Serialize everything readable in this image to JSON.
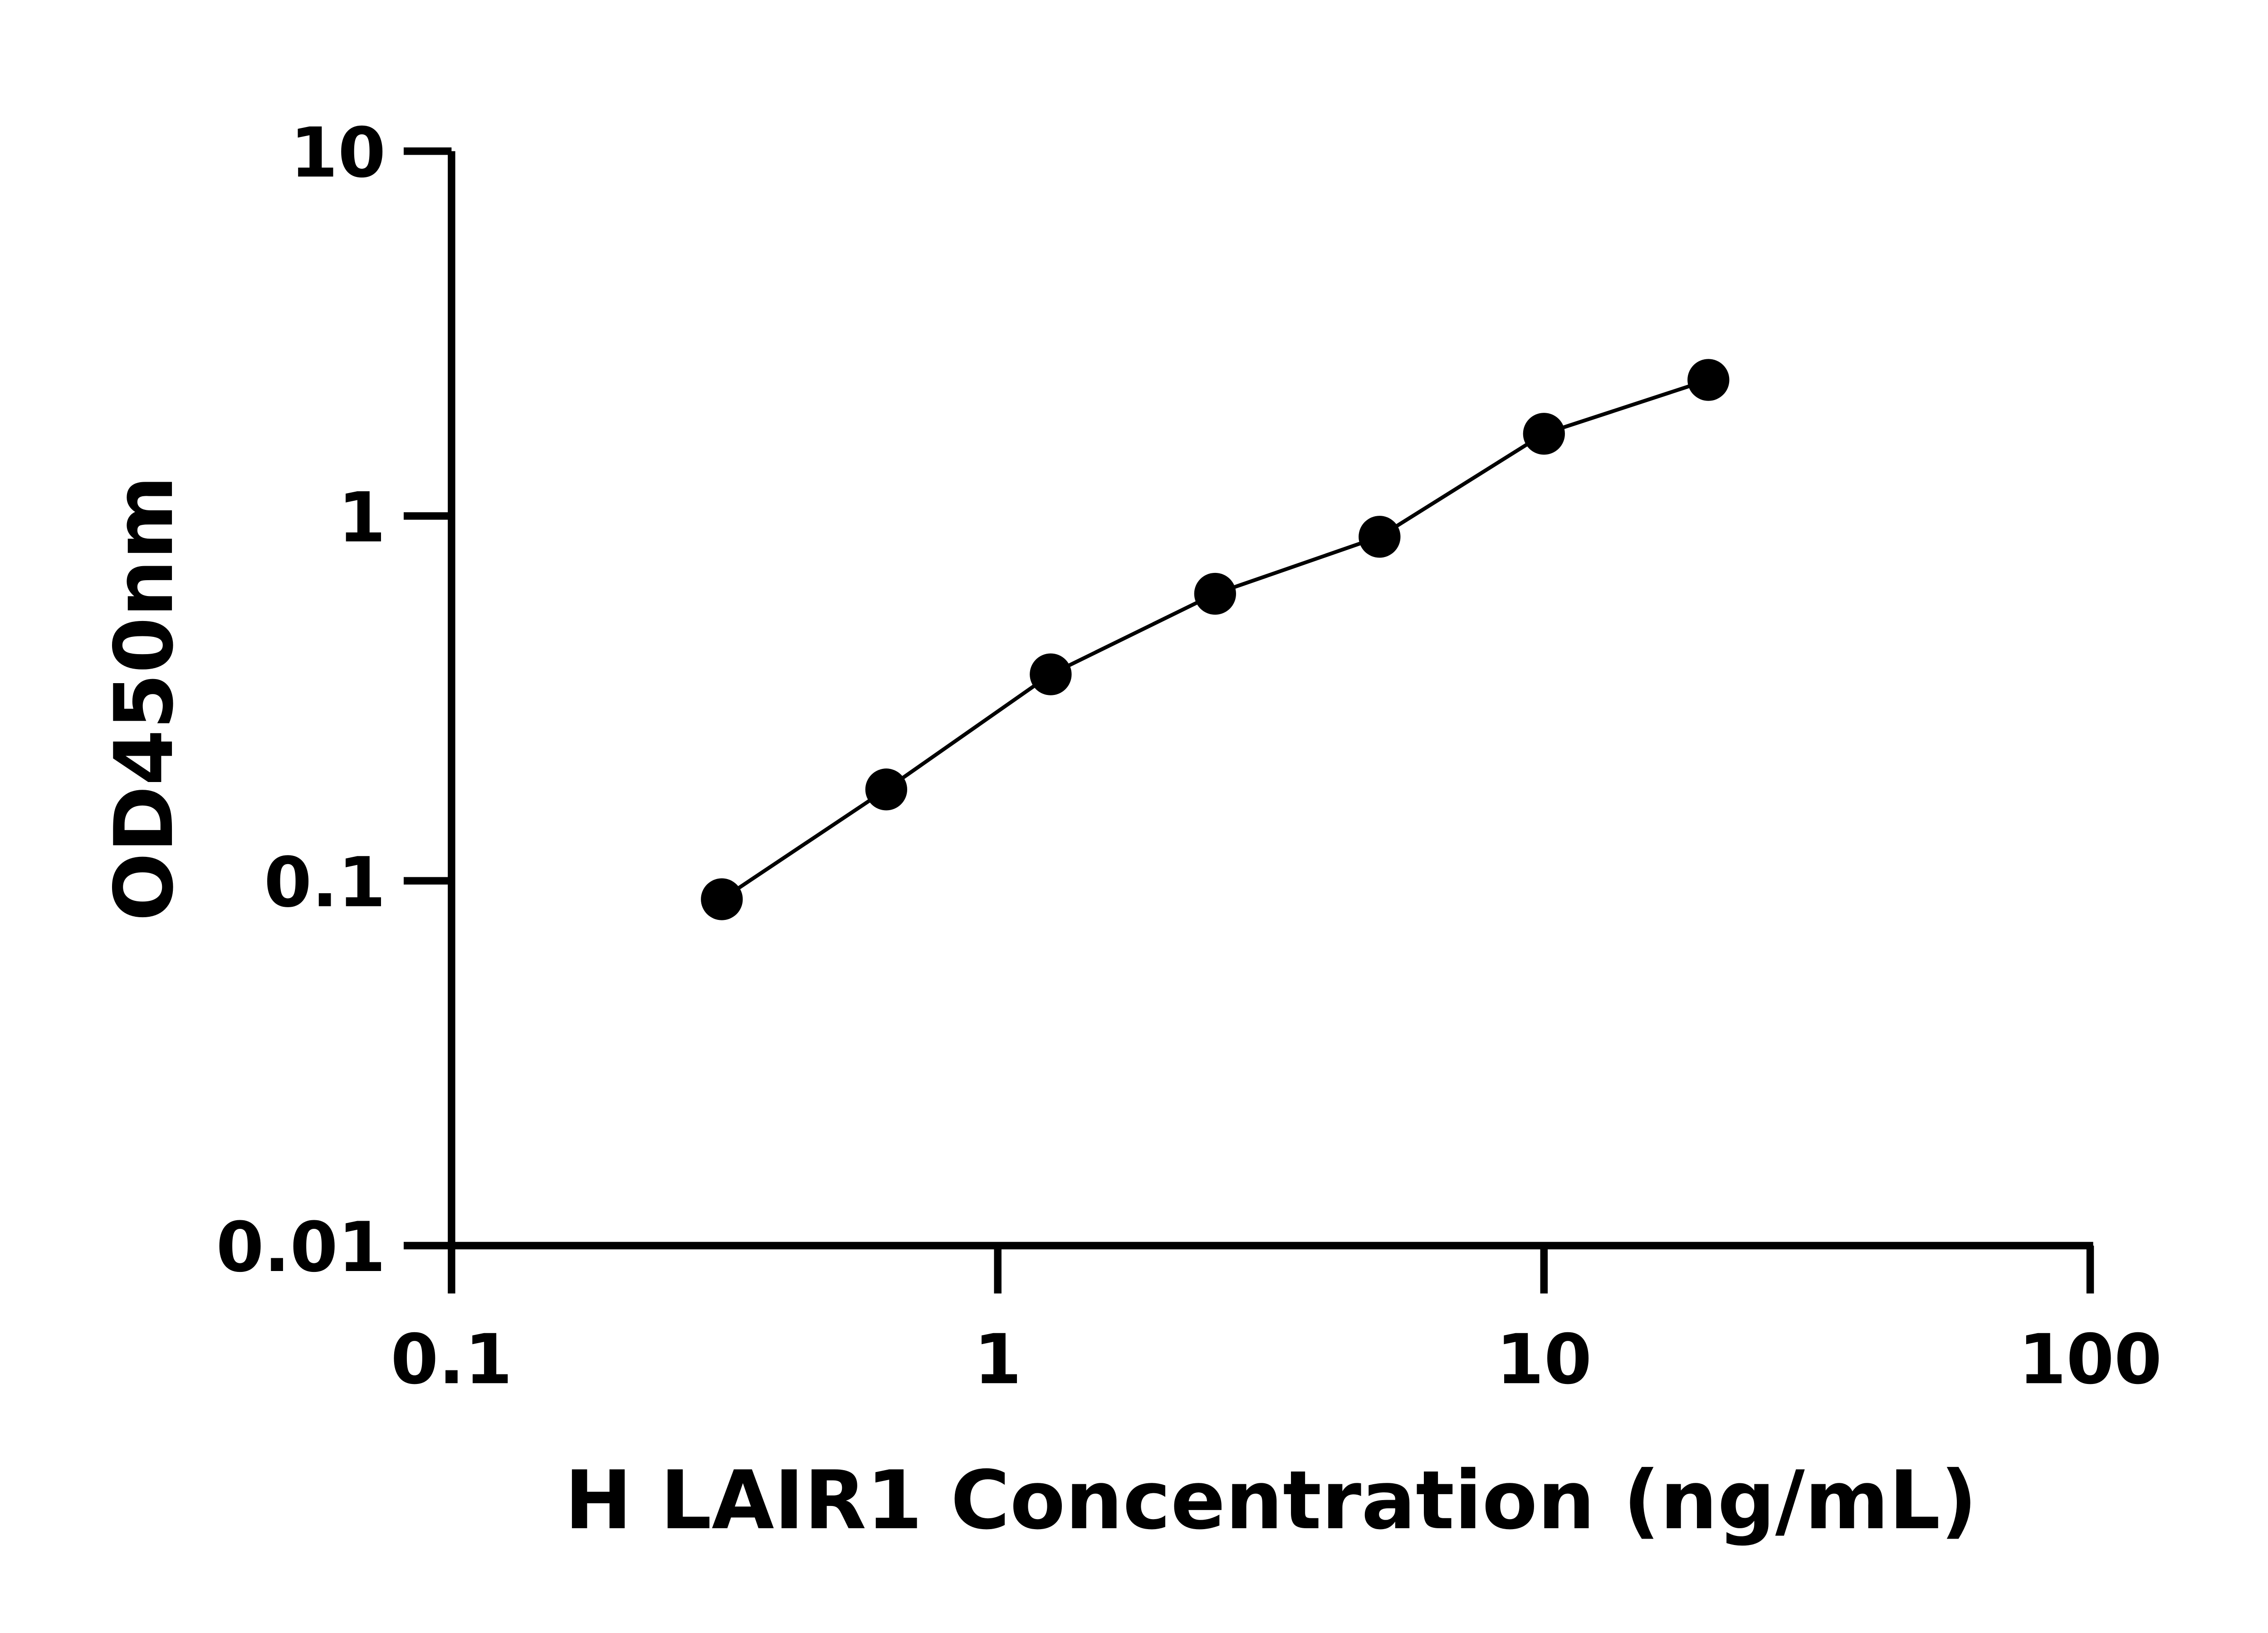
{
  "chart_data": {
    "type": "scatter",
    "title": "",
    "xlabel": "H LAIR1 Concentration (ng/mL)",
    "ylabel": "OD450nm",
    "xscale": "log",
    "yscale": "log",
    "xlim": [
      0.1,
      100
    ],
    "ylim": [
      0.01,
      10
    ],
    "xticks": [
      "0.1",
      "1",
      "10",
      "100"
    ],
    "yticks": [
      "0.01",
      "0.1",
      "1",
      "10"
    ],
    "grid": false,
    "legend": "none",
    "fit_line": true,
    "series": [
      {
        "x": [
          0.3125,
          0.625,
          1.25,
          2.5,
          5,
          10,
          20
        ],
        "y": [
          0.089,
          0.178,
          0.368,
          0.612,
          0.877,
          1.68,
          2.36
        ]
      }
    ],
    "colors": {
      "marker": "#000000",
      "line": "#000000",
      "axis": "#000000"
    }
  }
}
